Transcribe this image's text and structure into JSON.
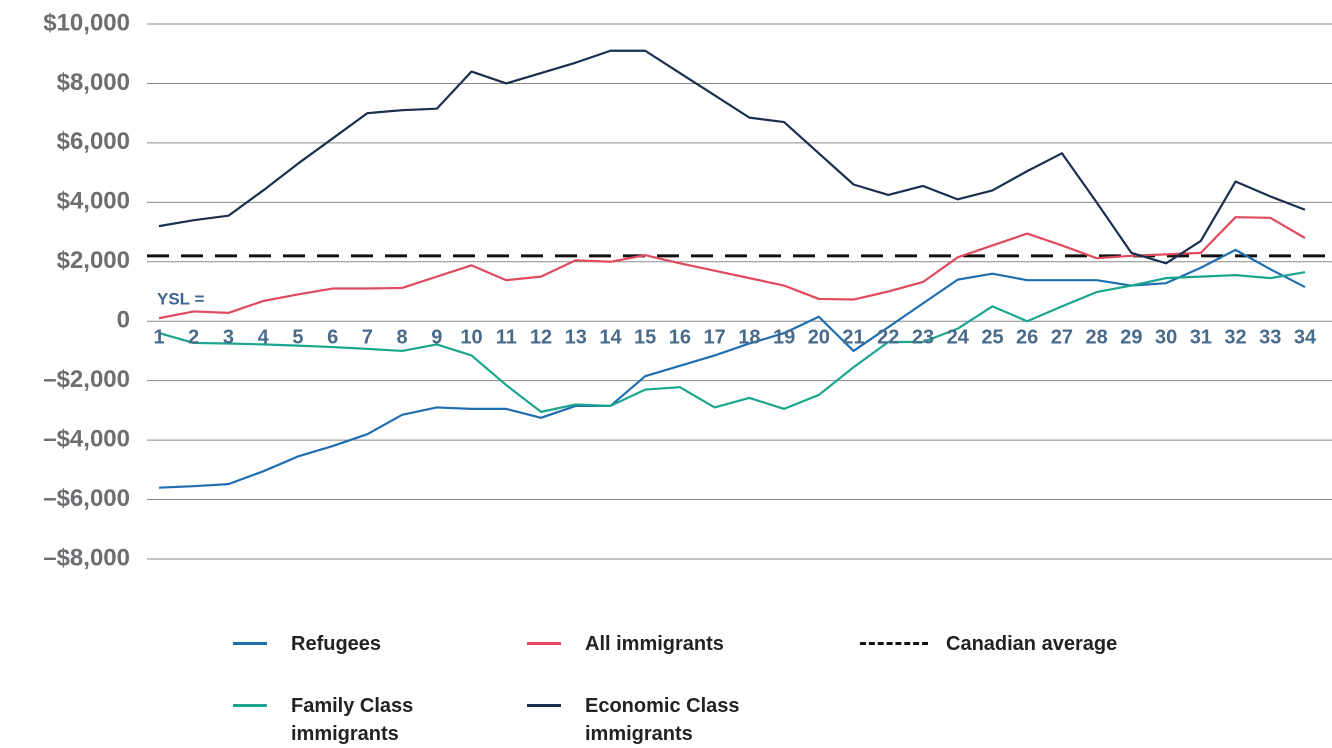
{
  "chart_data": {
    "type": "line",
    "annotation": "YSL =",
    "x": [
      1,
      2,
      3,
      4,
      5,
      6,
      7,
      8,
      9,
      10,
      11,
      12,
      13,
      14,
      15,
      16,
      17,
      18,
      19,
      20,
      21,
      22,
      23,
      24,
      25,
      26,
      27,
      28,
      29,
      30,
      31,
      32,
      33,
      34
    ],
    "xlim": [
      1,
      34
    ],
    "ylim": [
      -8000,
      10000
    ],
    "yticks": [
      {
        "value": -8000,
        "label": "–$8,000"
      },
      {
        "value": -6000,
        "label": "–$6,000"
      },
      {
        "value": -4000,
        "label": "–$4,000"
      },
      {
        "value": -2000,
        "label": "–$2,000"
      },
      0,
      {
        "value": 2000,
        "label": "$2,000"
      },
      {
        "value": 4000,
        "label": "$4,000"
      },
      {
        "value": 6000,
        "label": "$6,000"
      },
      {
        "value": 8000,
        "label": "$8,000"
      },
      {
        "value": 10000,
        "label": "$10,000"
      }
    ],
    "grid": true,
    "series": [
      {
        "name": "Refugees",
        "color": "#1f6fb0",
        "values": [
          -5600,
          -5550,
          -5480,
          -5050,
          -4550,
          -4200,
          -3800,
          -3150,
          -2900,
          -2950,
          -2950,
          -3250,
          -2850,
          -2850,
          -1850,
          -1500,
          -1150,
          -750,
          -400,
          150,
          -1000,
          -200,
          600,
          1400,
          1600,
          1380,
          1380,
          1380,
          1200,
          1280,
          1800,
          2400,
          1750,
          1150
        ]
      },
      {
        "name": "All immigrants",
        "color": "#e04a5f",
        "values": [
          100,
          330,
          280,
          680,
          900,
          1100,
          1100,
          1120,
          1500,
          1880,
          1380,
          1500,
          2050,
          2000,
          2220,
          1950,
          1700,
          1450,
          1200,
          750,
          730,
          1000,
          1320,
          2150,
          2550,
          2950,
          2550,
          2120,
          2200,
          2250,
          2300,
          3500,
          3480,
          2800
        ]
      },
      {
        "name": "Family Class immigrants",
        "color": "#1aa68e",
        "values": [
          -400,
          -730,
          -750,
          -780,
          -820,
          -870,
          -930,
          -1000,
          -780,
          -1150,
          -2150,
          -3050,
          -2800,
          -2850,
          -2300,
          -2220,
          -2900,
          -2580,
          -2950,
          -2480,
          -1550,
          -700,
          -700,
          -250,
          500,
          0,
          500,
          980,
          1200,
          1450,
          1500,
          1550,
          1450,
          1650
        ]
      },
      {
        "name": "Economic Class immigrants",
        "color": "#1a2e4f",
        "values": [
          3200,
          3400,
          3550,
          4400,
          5300,
          6150,
          7000,
          7100,
          7150,
          8400,
          8000,
          8350,
          8700,
          9100,
          9100,
          8350,
          7600,
          6850,
          6700,
          5650,
          4600,
          4250,
          4550,
          4100,
          4400,
          5050,
          5650,
          4000,
          2300,
          1950,
          2700,
          4700,
          4200,
          3750
        ]
      }
    ],
    "reference": {
      "name": "Canadian average",
      "value": 2200,
      "color": "#111111",
      "dashed": true
    }
  }
}
